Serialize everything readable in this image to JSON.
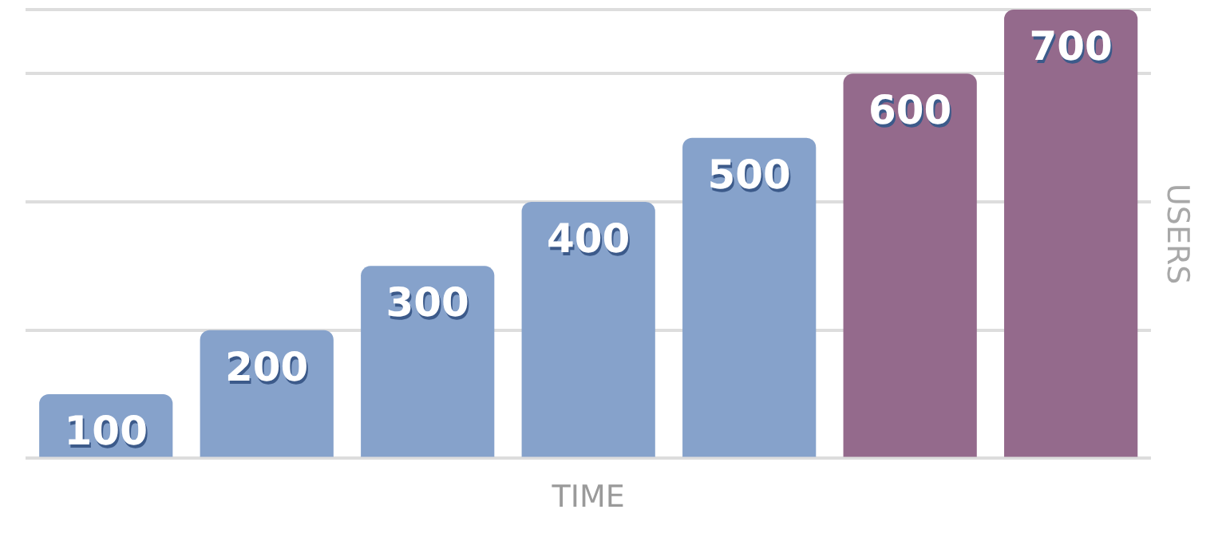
{
  "chart_data": {
    "type": "bar",
    "xlabel": "TIME",
    "ylabel": "USERS",
    "categories": [
      null,
      null,
      null,
      null,
      null,
      null,
      null
    ],
    "series": [
      {
        "colors": [
          "#86a2cb",
          "#86a2cb",
          "#86a2cb",
          "#86a2cb",
          "#86a2cb",
          "#946a8c",
          "#946a8c"
        ],
        "values": [
          100,
          200,
          300,
          400,
          500,
          600,
          700
        ]
      }
    ],
    "data_labels": true,
    "grid": "y",
    "legend": false,
    "tick_labels": false
  }
}
